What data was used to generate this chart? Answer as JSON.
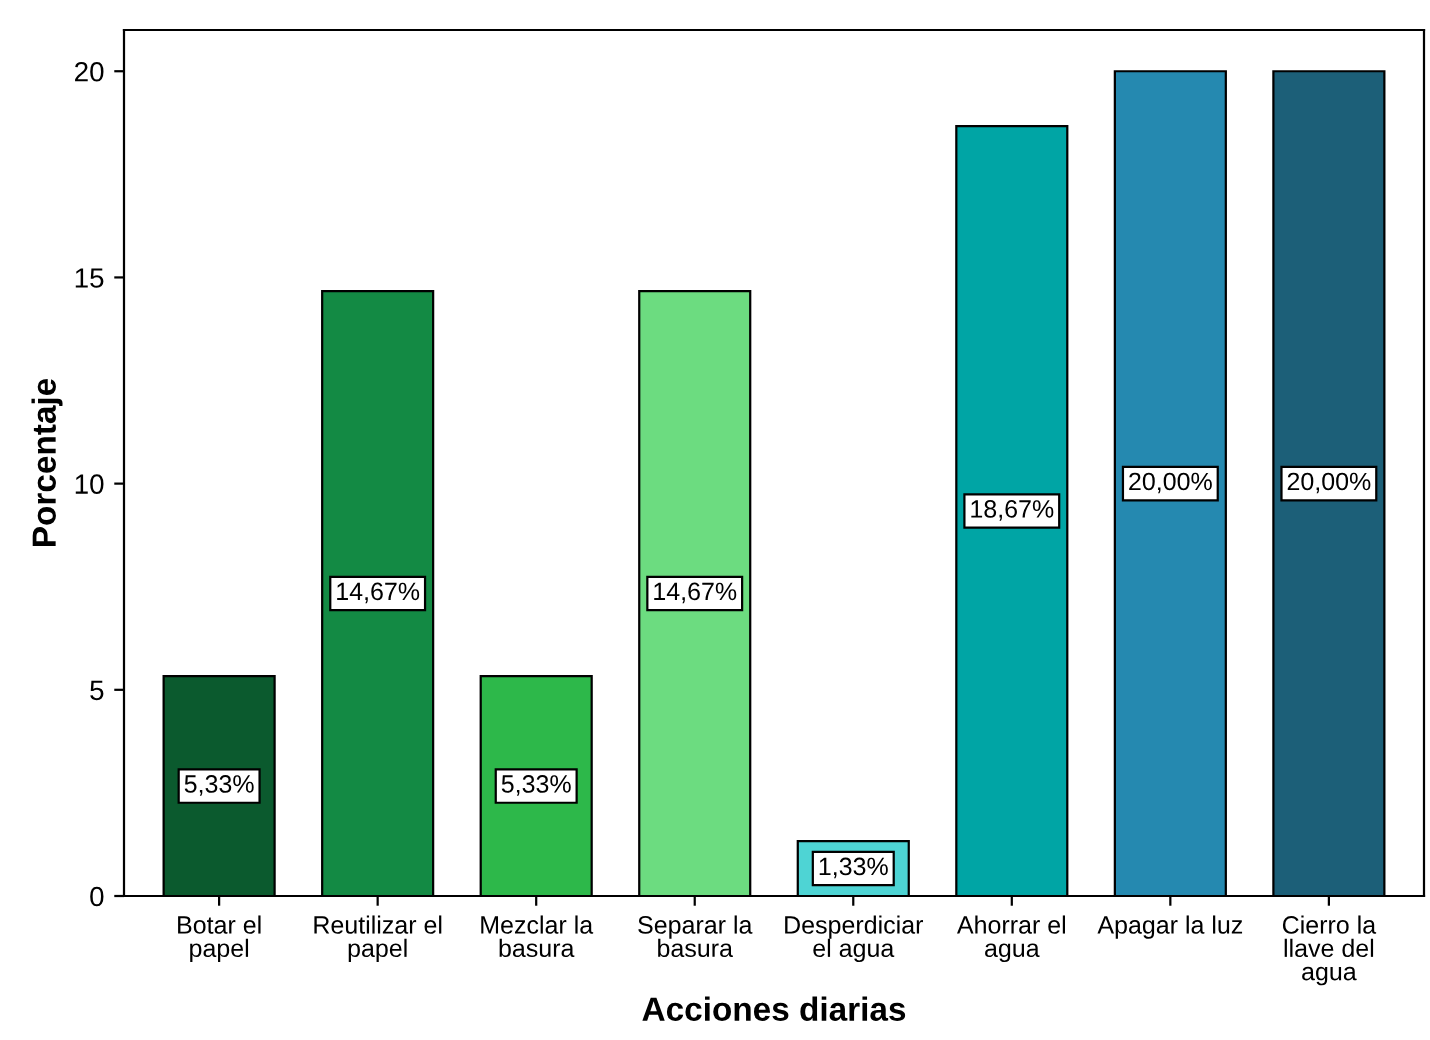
{
  "chart_data": {
    "type": "bar",
    "xlabel": "Acciones diarias",
    "ylabel": "Porcentaje",
    "categories": [
      "Botar el\npapel",
      "Reutilizar el\npapel",
      "Mezclar la\nbasura",
      "Separar la\nbasura",
      "Desperdiciar\nel agua",
      "Ahorrar el\nagua",
      "Apagar la luz",
      "Cierro la\nllave del\nagua"
    ],
    "values": [
      5.33,
      14.67,
      5.33,
      14.67,
      1.33,
      18.67,
      20.0,
      20.0
    ],
    "colors": [
      "#0b5a2e",
      "#138a44",
      "#2db84a",
      "#6cdc80",
      "#4ed4d4",
      "#00a5a5",
      "#2589b0",
      "#1c5f78"
    ],
    "value_labels": [
      "5,33%",
      "14,67%",
      "5,33%",
      "14,67%",
      "1,33%",
      "18,67%",
      "20,00%",
      "20,00%"
    ],
    "ylim": [
      0,
      21
    ],
    "yticks": [
      0,
      5,
      10,
      15,
      20
    ],
    "grid": false,
    "legend": false
  }
}
